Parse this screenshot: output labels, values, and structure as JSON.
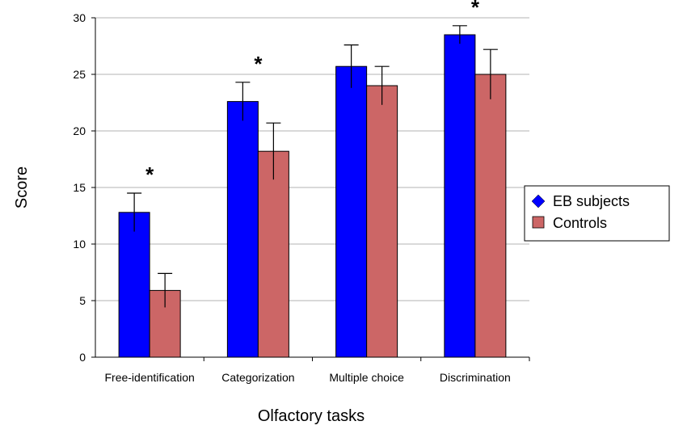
{
  "chart_data": {
    "type": "bar",
    "title": "",
    "xlabel": "Olfactory tasks",
    "ylabel": "Score",
    "ylim": [
      0,
      30
    ],
    "yticks": [
      0,
      5,
      10,
      15,
      20,
      25,
      30
    ],
    "grid": true,
    "legend_position": "right",
    "categories": [
      "Free-identification",
      "Categorization",
      "Multiple choice",
      "Discrimination"
    ],
    "series": [
      {
        "name": "EB subjects",
        "color": "#0000ff",
        "marker": "diamond",
        "values": [
          12.8,
          22.6,
          25.7,
          28.5
        ],
        "errors": [
          1.7,
          1.7,
          1.9,
          0.8
        ]
      },
      {
        "name": "Controls",
        "color": "#cc6666",
        "marker": "square",
        "values": [
          5.9,
          18.2,
          24.0,
          25.0
        ],
        "errors": [
          1.5,
          2.5,
          1.7,
          2.2
        ]
      }
    ],
    "annotations": [
      {
        "category": "Free-identification",
        "text": "*"
      },
      {
        "category": "Categorization",
        "text": "*"
      },
      {
        "category": "Discrimination",
        "text": "*"
      }
    ]
  }
}
